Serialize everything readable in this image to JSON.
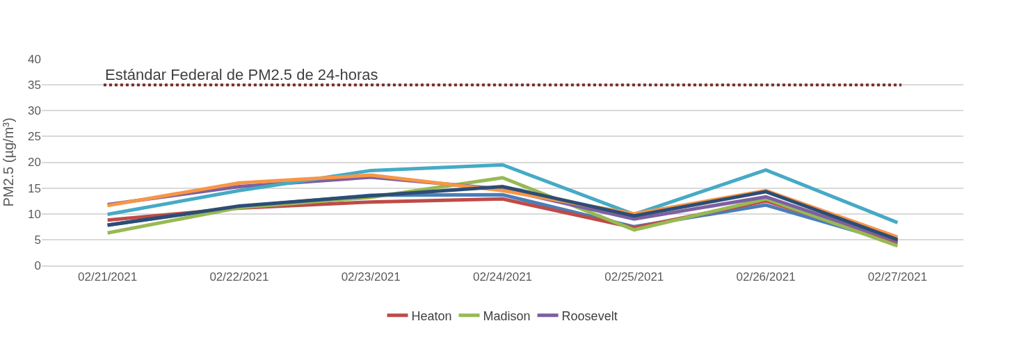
{
  "chart_data": {
    "type": "line",
    "ylabel": "PM2.5 (µg/m³)",
    "categories": [
      "02/21/2021",
      "02/22/2021",
      "02/23/2021",
      "02/24/2021",
      "02/25/2021",
      "02/26/2021",
      "02/27/2021"
    ],
    "series": [
      {
        "color": "#4a7ebb",
        "values": [
          7.8,
          11.4,
          13.6,
          13.7,
          7.5,
          11.7,
          4.3
        ]
      },
      {
        "name": "Heaton",
        "color": "#be4b48",
        "values": [
          8.8,
          11.1,
          12.3,
          12.9,
          7.3,
          12.5,
          4.5
        ]
      },
      {
        "name": "Madison",
        "color": "#98b954",
        "values": [
          6.3,
          11.2,
          13.2,
          17.0,
          6.9,
          12.9,
          3.8
        ]
      },
      {
        "name": "Roosevelt",
        "color": "#7d60a0",
        "values": [
          11.8,
          15.3,
          17.1,
          14.8,
          9.0,
          13.3,
          4.7
        ]
      },
      {
        "color": "#46aac5",
        "values": [
          9.9,
          14.5,
          18.4,
          19.5,
          9.9,
          18.5,
          8.3
        ]
      },
      {
        "color": "#f79646",
        "values": [
          11.6,
          16.0,
          17.5,
          14.5,
          10.0,
          14.5,
          5.5
        ]
      },
      {
        "color": "#2c4d75",
        "values": [
          7.8,
          11.5,
          13.5,
          15.3,
          9.6,
          14.3,
          5.0
        ]
      }
    ],
    "ylim": [
      0,
      40
    ],
    "yticks": [
      0,
      5,
      10,
      15,
      20,
      25,
      30,
      35,
      40
    ],
    "grid": "y",
    "legend": "bottom",
    "marker": "none",
    "line_style": "solid",
    "ref_lines": [
      {
        "axis": "y",
        "value": 35,
        "label": "Estándar Federal de PM2.5 de 24-horas",
        "color": "#7b2c2c",
        "line_style": "dotted"
      }
    ]
  }
}
